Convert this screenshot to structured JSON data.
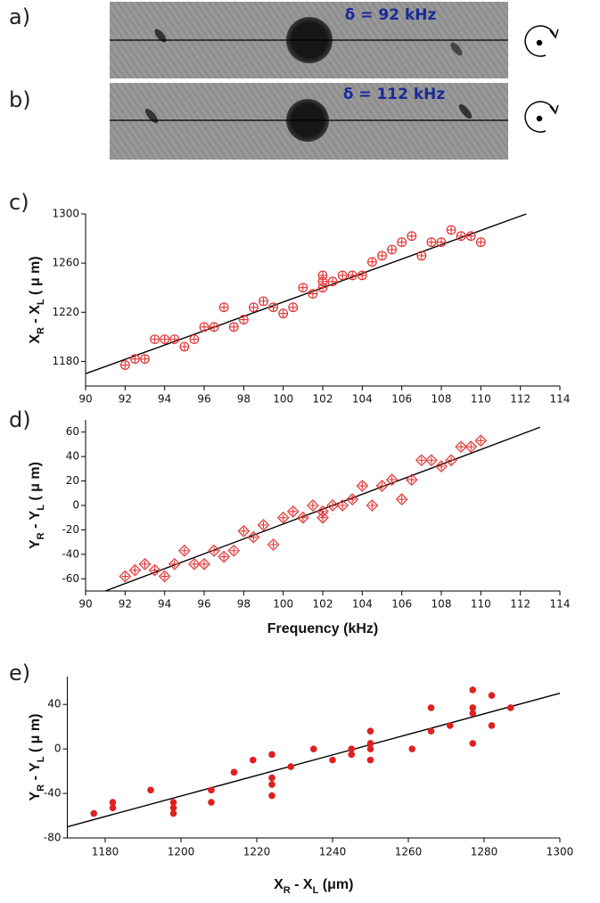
{
  "images": [
    {
      "label": "a)",
      "caption": "δ = 92 kHz"
    },
    {
      "label": "b)",
      "caption": "δ = 112 kHz"
    }
  ],
  "chart_data": [
    {
      "type": "scatter",
      "label": "c)",
      "marker": "circle-plus",
      "color": "#e03030",
      "ylabel_parts": [
        {
          "text": "X"
        },
        {
          "text": "R",
          "sub": true
        },
        {
          "text": " - X"
        },
        {
          "text": "L",
          "sub": true
        },
        {
          "text": "  ( μ m)"
        }
      ],
      "xlim": [
        90,
        114
      ],
      "xticks": [
        90,
        92,
        94,
        96,
        98,
        100,
        102,
        104,
        106,
        108,
        110,
        112,
        114
      ],
      "ylim": [
        1160,
        1300
      ],
      "yticks": [
        1180,
        1220,
        1260,
        1300
      ],
      "x": [
        92,
        92.5,
        93,
        93.5,
        94,
        94.5,
        95,
        95.5,
        96,
        96.5,
        97,
        97.5,
        98,
        98.5,
        99,
        99.5,
        100,
        100.5,
        101,
        101.5,
        102,
        102,
        102,
        102.5,
        103,
        103.5,
        104,
        104.5,
        105,
        105.5,
        106,
        106.5,
        107,
        107.5,
        108,
        108.5,
        109,
        109.5,
        110
      ],
      "values": [
        1177,
        1182,
        1182,
        1198,
        1198,
        1198,
        1192,
        1198,
        1208,
        1208,
        1224,
        1208,
        1214,
        1224,
        1229,
        1224,
        1219,
        1224,
        1240,
        1235,
        1240,
        1245,
        1250,
        1245,
        1250,
        1250,
        1250,
        1261,
        1266,
        1271,
        1277,
        1282,
        1266,
        1277,
        1277,
        1287,
        1282,
        1282,
        1277
      ],
      "fit": {
        "x": [
          90,
          112.3
        ],
        "values": [
          1170,
          1300
        ]
      }
    },
    {
      "type": "scatter",
      "label": "d)",
      "marker": "diamond-plus",
      "color": "#e03030",
      "ylabel_parts": [
        {
          "text": "Y"
        },
        {
          "text": "R",
          "sub": true
        },
        {
          "text": " - Y"
        },
        {
          "text": "L",
          "sub": true
        },
        {
          "text": "  ( μ m)"
        }
      ],
      "xlabel": "Frequency (kHz)",
      "xlim": [
        90,
        114
      ],
      "xticks": [
        90,
        92,
        94,
        96,
        98,
        100,
        102,
        104,
        106,
        108,
        110,
        112,
        114
      ],
      "ylim": [
        -70,
        70
      ],
      "yticks": [
        -60,
        -40,
        -20,
        0,
        20,
        40,
        60
      ],
      "x": [
        92,
        92.5,
        93,
        93.5,
        94,
        94.5,
        95,
        95.5,
        96,
        96.5,
        97,
        97.5,
        98,
        98.5,
        99,
        99.5,
        100,
        100.5,
        101,
        101.5,
        102,
        102,
        102.5,
        103,
        103.5,
        104,
        104.5,
        105,
        105.5,
        106,
        106.5,
        107,
        107.5,
        108,
        108.5,
        109,
        109.5,
        110
      ],
      "values": [
        -58,
        -53,
        -48,
        -53,
        -58,
        -48,
        -37,
        -48,
        -48,
        -37,
        -42,
        -37,
        -21,
        -26,
        -16,
        -32,
        -10,
        -5,
        -10,
        0,
        -5,
        -10,
        0,
        0,
        5,
        16,
        0,
        16,
        21,
        5,
        21,
        37,
        37,
        32,
        37,
        48,
        48,
        53
      ],
      "fit": {
        "x": [
          91,
          113
        ],
        "values": [
          -70,
          64
        ]
      }
    },
    {
      "type": "scatter",
      "label": "e)",
      "marker": "dot",
      "color": "#e02020",
      "ylabel_parts": [
        {
          "text": "Y"
        },
        {
          "text": "R",
          "sub": true
        },
        {
          "text": " - Y"
        },
        {
          "text": "L",
          "sub": true
        },
        {
          "text": "  ( μ m)"
        }
      ],
      "xlabel_parts": [
        {
          "text": "X"
        },
        {
          "text": "R",
          "sub": true
        },
        {
          "text": " - X"
        },
        {
          "text": "L",
          "sub": true
        },
        {
          "text": "  (μm)"
        }
      ],
      "xlim": [
        1170,
        1300
      ],
      "xticks": [
        1180,
        1200,
        1220,
        1240,
        1260,
        1280,
        1300
      ],
      "ylim": [
        -80,
        65
      ],
      "yticks": [
        -80,
        -40,
        0,
        40
      ],
      "x": [
        1177,
        1182,
        1182,
        1192,
        1198,
        1198,
        1198,
        1208,
        1208,
        1214,
        1219,
        1224,
        1224,
        1224,
        1224,
        1229,
        1235,
        1240,
        1245,
        1245,
        1250,
        1250,
        1250,
        1250,
        1261,
        1266,
        1266,
        1271,
        1277,
        1277,
        1277,
        1277,
        1282,
        1282,
        1287
      ],
      "values": [
        -58,
        -53,
        -48,
        -37,
        -58,
        -53,
        -48,
        -48,
        -37,
        -21,
        -10,
        -42,
        -32,
        -26,
        -5,
        -16,
        0,
        -10,
        0,
        -5,
        -10,
        0,
        5,
        16,
        0,
        16,
        37,
        21,
        5,
        32,
        37,
        53,
        21,
        48,
        37
      ],
      "fit": {
        "x": [
          1170,
          1300
        ],
        "values": [
          -70,
          50
        ]
      }
    }
  ]
}
